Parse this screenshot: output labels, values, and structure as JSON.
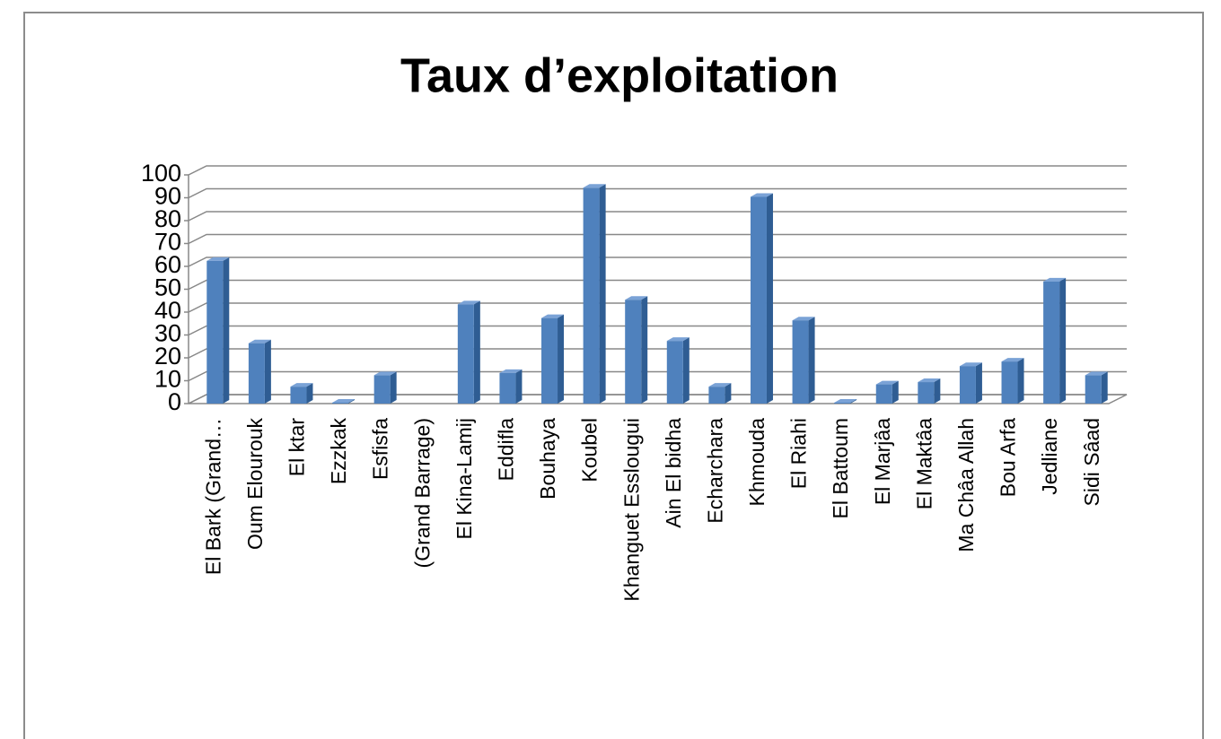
{
  "chart_data": {
    "type": "bar3d",
    "title": "Taux d’exploitation",
    "categories": [
      "El Bark (Grand…",
      "Oum Elourouk",
      "El ktar",
      "Ezzkak",
      "Esfisfa",
      "(Grand Barrage)",
      "El Kina-Lamij",
      "Eddifla",
      "Bouhaya",
      "Koubel",
      "Khanguet Esslougui",
      "Ain El bidha",
      "Echarchara",
      "Khmouda",
      "El Riahi",
      "El Battoum",
      "El Marjâa",
      "El Maktâa",
      "Ma Châa Allah",
      "Bou Arfa",
      "Jedliane",
      "Sidi Sâad"
    ],
    "values": [
      62,
      26,
      7,
      0,
      12,
      null,
      43,
      13,
      37,
      94,
      45,
      27,
      7,
      90,
      36,
      0,
      8,
      9,
      16,
      18,
      53,
      12
    ],
    "color": "#4f81bd",
    "ylim": [
      0,
      100
    ],
    "yticks": [
      0,
      10,
      20,
      30,
      40,
      50,
      60,
      70,
      80,
      90,
      100
    ],
    "grid": true
  }
}
